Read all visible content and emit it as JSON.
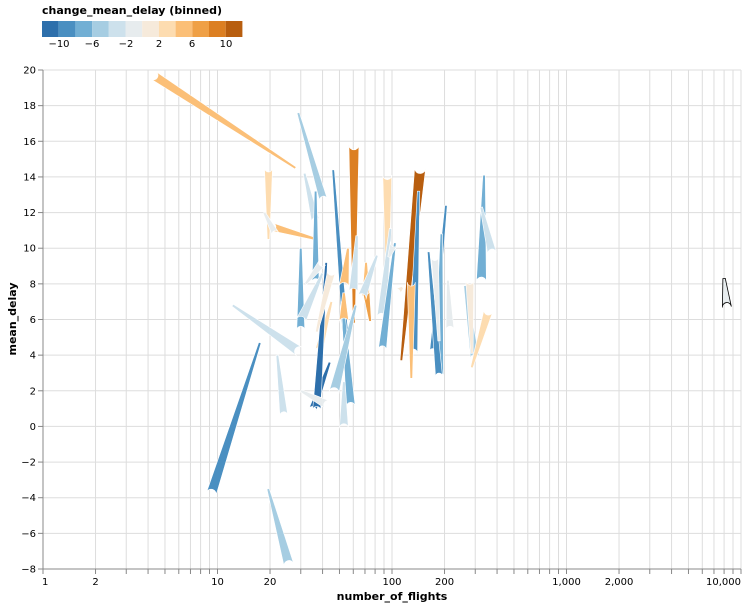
{
  "chart_data": {
    "type": "trail",
    "title": "",
    "xlabel": "number_of_flights",
    "ylabel": "mean_delay",
    "xscale": "log",
    "xlim": [
      1,
      10000
    ],
    "ylim": [
      -8,
      20
    ],
    "x_ticks": [
      "1",
      "2",
      "10",
      "20",
      "100",
      "200",
      "1,000",
      "2,000",
      "10,000"
    ],
    "x_tick_values": [
      1,
      2,
      10,
      20,
      100,
      200,
      1000,
      2000,
      10000
    ],
    "y_ticks": [
      "20",
      "18",
      "16",
      "14",
      "12",
      "10",
      "8",
      "6",
      "4",
      "2",
      "0",
      "−2",
      "−4",
      "−6",
      "−8"
    ],
    "y_tick_values": [
      20,
      18,
      16,
      14,
      12,
      10,
      8,
      6,
      4,
      2,
      0,
      -2,
      -4,
      -6,
      -8
    ],
    "grid": true,
    "legend": {
      "title": "change_mean_delay (binned)",
      "position": "top-left",
      "labels": [
        "−10",
        "−6",
        "−2",
        "2",
        "6",
        "10"
      ],
      "bins": [
        -12,
        -10,
        -8,
        -6,
        -4,
        -2,
        0,
        2,
        4,
        6,
        8,
        10,
        12
      ],
      "colors": [
        "#2d6fab",
        "#4a8fc1",
        "#72afd4",
        "#a6cde2",
        "#cde1ec",
        "#e7ecee",
        "#f6eadb",
        "#fddcb0",
        "#fbbf77",
        "#efa046",
        "#dc7f22",
        "#b85e0f"
      ]
    },
    "series": [
      {
        "x0": 28,
        "y0": 14.5,
        "x1": 4.3,
        "y1": 19.7,
        "color_bin": 8,
        "w": 9
      },
      {
        "x0": 37,
        "y0": 10.5,
        "x1": 20.5,
        "y1": 11.2,
        "color_bin": 8,
        "w": 8
      },
      {
        "x0": 19.6,
        "y0": 10.5,
        "x1": 19.6,
        "y1": 14.5,
        "color_bin": 7,
        "w": 8
      },
      {
        "x0": 18.5,
        "y0": 12,
        "x1": 21.5,
        "y1": 10.8,
        "color_bin": 5,
        "w": 7
      },
      {
        "x0": 29,
        "y0": 17.6,
        "x1": 40.5,
        "y1": 12.7,
        "color_bin": 3,
        "w": 8
      },
      {
        "x0": 31.5,
        "y0": 14.2,
        "x1": 36.5,
        "y1": 11.5,
        "color_bin": 4,
        "w": 8
      },
      {
        "x0": 60.5,
        "y0": 5.8,
        "x1": 60.5,
        "y1": 15.8,
        "color_bin": 10,
        "w": 10
      },
      {
        "x0": 113,
        "y0": 3.7,
        "x1": 145,
        "y1": 14.5,
        "color_bin": 11,
        "w": 11
      },
      {
        "x0": 94,
        "y0": 7.5,
        "x1": 94,
        "y1": 14.1,
        "color_bin": 7,
        "w": 9
      },
      {
        "x0": 46,
        "y0": 14.4,
        "x1": 54,
        "y1": 5.2,
        "color_bin": 1,
        "w": 6
      },
      {
        "x0": 36.5,
        "y0": 13.2,
        "x1": 36.5,
        "y1": 8.1,
        "color_bin": 2,
        "w": 7
      },
      {
        "x0": 142,
        "y0": 13.2,
        "x1": 132,
        "y1": 4.1,
        "color_bin": 1,
        "w": 9
      },
      {
        "x0": 204,
        "y0": 12.4,
        "x1": 171,
        "y1": 4.2,
        "color_bin": 1,
        "w": 6
      },
      {
        "x0": 337,
        "y0": 14.1,
        "x1": 325,
        "y1": 8.1,
        "color_bin": 2,
        "w": 10
      },
      {
        "x0": 325,
        "y0": 12.3,
        "x1": 375,
        "y1": 9.7,
        "color_bin": 4,
        "w": 9
      },
      {
        "x0": 192,
        "y0": 10.8,
        "x1": 186,
        "y1": 2.8,
        "color_bin": 2,
        "w": 9
      },
      {
        "x0": 162,
        "y0": 9.8,
        "x1": 186,
        "y1": 2.8,
        "color_bin": 1,
        "w": 7
      },
      {
        "x0": 30,
        "y0": 10,
        "x1": 30,
        "y1": 5.4,
        "color_bin": 2,
        "w": 8
      },
      {
        "x0": 40,
        "y0": 8.6,
        "x1": 30,
        "y1": 5.9,
        "color_bin": 4,
        "w": 10
      },
      {
        "x0": 45,
        "y0": 7,
        "x1": 38,
        "y1": 4.2,
        "color_bin": 7,
        "w": 8
      },
      {
        "x0": 44,
        "y0": 3.6,
        "x1": 35,
        "y1": 0.9,
        "color_bin": 0,
        "w": 8
      },
      {
        "x0": 42,
        "y0": 9.2,
        "x1": 37,
        "y1": 0.9,
        "color_bin": 0,
        "w": 8
      },
      {
        "x0": 52,
        "y0": 7,
        "x1": 58,
        "y1": 1.1,
        "color_bin": 2,
        "w": 9
      },
      {
        "x0": 62,
        "y0": 6.8,
        "x1": 46.5,
        "y1": 1.9,
        "color_bin": 3,
        "w": 10
      },
      {
        "x0": 53,
        "y0": 2.5,
        "x1": 53,
        "y1": -0.1,
        "color_bin": 4,
        "w": 9
      },
      {
        "x0": 30,
        "y0": 2,
        "x1": 43,
        "y1": 1.2,
        "color_bin": 5,
        "w": 9
      },
      {
        "x0": 12.2,
        "y0": 6.8,
        "x1": 29.5,
        "y1": 4.2,
        "color_bin": 4,
        "w": 10
      },
      {
        "x0": 22,
        "y0": 4,
        "x1": 24,
        "y1": 0.6,
        "color_bin": 4,
        "w": 8
      },
      {
        "x0": 17.5,
        "y0": 4.7,
        "x1": 9.2,
        "y1": -3.8,
        "color_bin": 1,
        "w": 10
      },
      {
        "x0": 19.5,
        "y0": -3.5,
        "x1": 25.7,
        "y1": -7.8,
        "color_bin": 3,
        "w": 10
      },
      {
        "x0": 56,
        "y0": 10,
        "x1": 53,
        "y1": 7.8,
        "color_bin": 8,
        "w": 10
      },
      {
        "x0": 53,
        "y0": 7.5,
        "x1": 53,
        "y1": 5.8,
        "color_bin": 8,
        "w": 10
      },
      {
        "x0": 63,
        "y0": 10.7,
        "x1": 60,
        "y1": 7.5,
        "color_bin": 4,
        "w": 9
      },
      {
        "x0": 71,
        "y0": 9.2,
        "x1": 71,
        "y1": 7.2,
        "color_bin": 8,
        "w": 8
      },
      {
        "x0": 75,
        "y0": 5.9,
        "x1": 71,
        "y1": 7.6,
        "color_bin": 9,
        "w": 7
      },
      {
        "x0": 82,
        "y0": 9.6,
        "x1": 67,
        "y1": 7.2,
        "color_bin": 4,
        "w": 9
      },
      {
        "x0": 98,
        "y0": 11.1,
        "x1": 87,
        "y1": 6.1,
        "color_bin": 4,
        "w": 9
      },
      {
        "x0": 104,
        "y0": 10.3,
        "x1": 88,
        "y1": 4.3,
        "color_bin": 2,
        "w": 8
      },
      {
        "x0": 96,
        "y0": 9.5,
        "x1": 103,
        "y1": 10.3,
        "color_bin": 5,
        "w": 8
      },
      {
        "x0": 129,
        "y0": 2.7,
        "x1": 129,
        "y1": 8.1,
        "color_bin": 8,
        "w": 8
      },
      {
        "x0": 115,
        "y0": 7.8,
        "x1": 106,
        "y1": 7.5,
        "color_bin": 6,
        "w": 8
      },
      {
        "x0": 186,
        "y0": 4.8,
        "x1": 176,
        "y1": 9.5,
        "color_bin": 5,
        "w": 7
      },
      {
        "x0": 209,
        "y0": 8.2,
        "x1": 215,
        "y1": 5.4,
        "color_bin": 5,
        "w": 8
      },
      {
        "x0": 262,
        "y0": 7.9,
        "x1": 299,
        "y1": 3.8,
        "color_bin": 3,
        "w": 9
      },
      {
        "x0": 287,
        "y0": 4.1,
        "x1": 279,
        "y1": 8.2,
        "color_bin": 6,
        "w": 8
      },
      {
        "x0": 286,
        "y0": 3.3,
        "x1": 357,
        "y1": 6.5,
        "color_bin": 7,
        "w": 9
      },
      {
        "x0": 37,
        "y0": 5.3,
        "x1": 45,
        "y1": 8.7,
        "color_bin": 6,
        "w": 8
      },
      {
        "x0": 32,
        "y0": 8,
        "x1": 40,
        "y1": 9.2,
        "color_bin": 5,
        "w": 8
      },
      {
        "x0": 8000,
        "y0": 8.3,
        "x1": 8300,
        "y1": 6.7,
        "color_bin": 5,
        "w": 9,
        "stroke": "#000000"
      }
    ]
  },
  "legend_ticks": [
    "−10",
    "−6",
    "−2",
    "2",
    "6",
    "10"
  ]
}
